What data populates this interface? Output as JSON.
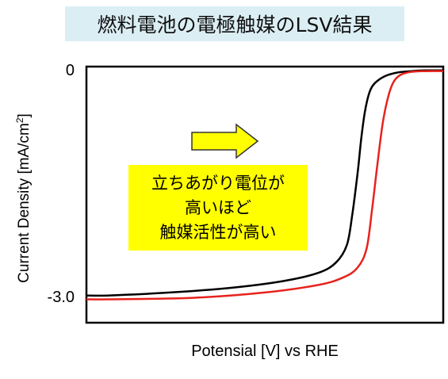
{
  "chart_data": {
    "type": "line",
    "title": "燃料電池の電極触媒のLSV結果",
    "xlabel": "Potensial [V] vs RHE",
    "ylabel_main": "Current Density [mA/cm",
    "ylabel_sup": "2",
    "ylabel_end": "]",
    "y_ticks": [
      {
        "value": 0,
        "label": "0"
      },
      {
        "value": -3.0,
        "label": "-3.0"
      }
    ],
    "xlim": [
      0,
      1
    ],
    "ylim": [
      -3.33,
      0.06
    ],
    "grid": false,
    "series": [
      {
        "color": "#000000",
        "x": [
          0.0,
          0.06,
          0.2,
          0.4,
          0.55,
          0.65,
          0.7,
          0.73,
          0.745,
          0.76,
          0.77,
          0.78,
          0.79,
          0.8,
          0.815,
          0.84,
          0.87,
          0.91,
          0.95,
          1.0
        ],
        "y": [
          -2.97,
          -2.97,
          -2.94,
          -2.87,
          -2.78,
          -2.67,
          -2.53,
          -2.3,
          -1.9,
          -1.35,
          -0.9,
          -0.55,
          -0.33,
          -0.21,
          -0.13,
          -0.06,
          -0.02,
          0.0,
          0.01,
          0.01
        ]
      },
      {
        "color": "#e8231d",
        "x": [
          0.0,
          0.06,
          0.3,
          0.5,
          0.65,
          0.72,
          0.76,
          0.785,
          0.8,
          0.815,
          0.83,
          0.845,
          0.86,
          0.88,
          0.91,
          0.95,
          1.0
        ],
        "y": [
          -3.02,
          -3.02,
          -3.0,
          -2.93,
          -2.83,
          -2.73,
          -2.6,
          -2.35,
          -1.85,
          -1.25,
          -0.7,
          -0.35,
          -0.15,
          -0.05,
          -0.01,
          0.0,
          0.0
        ]
      }
    ],
    "annotation": {
      "lines": [
        "立ちあがり電位が",
        "高いほど",
        "触媒活性が高い"
      ],
      "background": "#ffff00"
    },
    "arrow": {
      "direction": "right",
      "fill": "#ffff00",
      "stroke": "#333333"
    }
  }
}
